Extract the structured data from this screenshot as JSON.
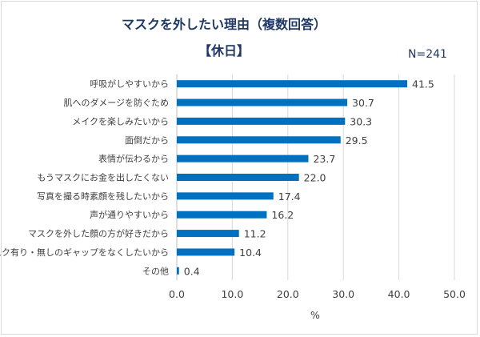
{
  "chart_data": {
    "type": "bar",
    "orientation": "horizontal",
    "title": "マスクを外したい理由（複数回答）",
    "subtitle": "【休日】",
    "note": "N=241",
    "categories": [
      "呼吸がしやすいから",
      "肌へのダメージを防ぐため",
      "メイクを楽しみたいから",
      "面倒だから",
      "表情が伝わるから",
      "もうマスクにお金を出したくない",
      "写真を撮る時素顔を残したいから",
      "声が通りやすいから",
      "マスクを外した顔の方が好きだから",
      "マスク有り・無しのギャップをなくしたいから",
      "その他"
    ],
    "values": [
      41.5,
      30.7,
      30.3,
      29.5,
      23.7,
      22.0,
      17.4,
      16.2,
      11.2,
      10.4,
      0.4
    ],
    "value_labels": [
      "41.5",
      "30.7",
      "30.3",
      "29.5",
      "23.7",
      "22.0",
      "17.4",
      "16.2",
      "11.2",
      "10.4",
      "0.4"
    ],
    "xlabel": "%",
    "xlim": [
      0,
      50
    ],
    "xticks": [
      "0.0",
      "10.0",
      "20.0",
      "30.0",
      "40.0",
      "50.0"
    ],
    "grid": true,
    "bar_color": "#0070c0"
  }
}
